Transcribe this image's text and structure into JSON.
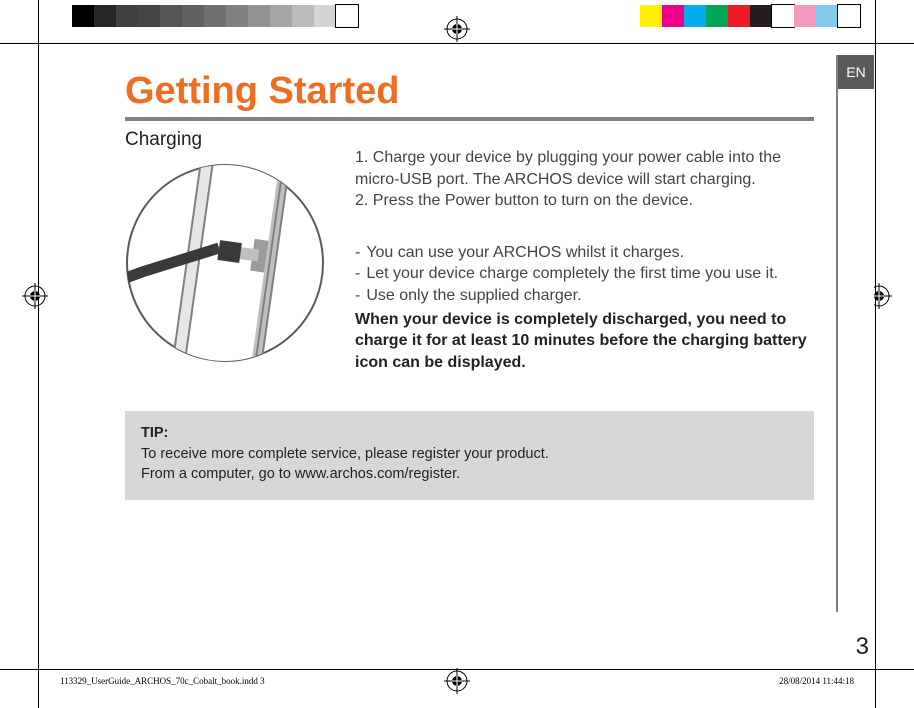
{
  "colorbar": {
    "left_colors": [
      "#000000",
      "#262626",
      "#404040",
      "#444444",
      "#565656",
      "#616161",
      "#6f6f6f",
      "#808080",
      "#939393",
      "#a6a6a6",
      "#bcbcbc",
      "#d4d4d4",
      "#ffffff"
    ],
    "right_colors": [
      "#fff200",
      "#ec008c",
      "#00aeef",
      "#00a651",
      "#ed1c24",
      "#231f20",
      "#ffffff",
      "#f49ac1",
      "#82caec",
      "#ffffff"
    ]
  },
  "side_tab": "EN",
  "title": "Getting Started",
  "subtitle": "Charging",
  "steps": {
    "s1": "1. Charge your device by plugging your power cable into the micro-USB port. The ARCHOS device will start charging.",
    "s2": "2. Press the Power button to turn on the device."
  },
  "bullets": {
    "b1": "You can use your ARCHOS whilst it charges.",
    "b2": "Let your device charge completely the first time you use it.",
    "b3": "Use only the supplied charger."
  },
  "note": "When your device is completely discharged, you need to charge it for at least 10 minutes before the charging battery icon can be displayed.",
  "tip": {
    "label": "TIP:",
    "line1": "To receive more complete service, please register your product.",
    "line2": "From a computer, go to www.archos.com/register."
  },
  "page_number": "3",
  "footer_left": "113329_UserGuide_ARCHOS_70c_Cobalt_book.indd   3",
  "footer_right": "28/08/2014   11:44:18",
  "colors": {
    "accent": "#ed6d23",
    "rule": "#808080",
    "tip_bg": "#d6d7d9",
    "body_text": "#444444"
  }
}
